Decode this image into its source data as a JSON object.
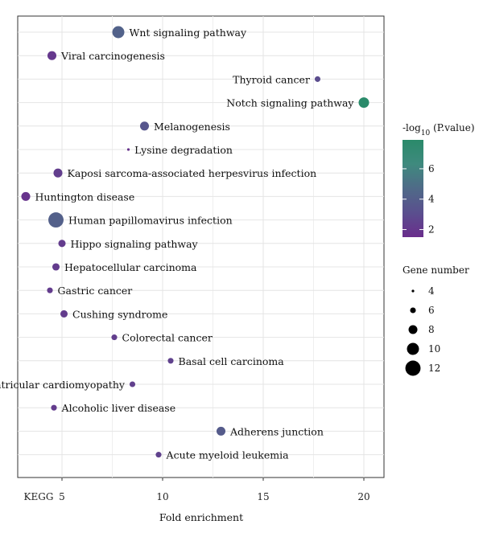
{
  "chart_data": {
    "type": "scatter",
    "xlabel": "Fold enrichment",
    "ylabel": "",
    "x_extra_label": "KEGG",
    "xlim": [
      2.8,
      21
    ],
    "xticks": [
      5,
      10,
      15,
      20
    ],
    "grid": true,
    "color_legend": {
      "title_prefix": "-log",
      "title_sub": "10",
      "title_suffix": " (P.value)",
      "range": [
        1.5,
        7.9
      ],
      "ticks": [
        2,
        4,
        6
      ],
      "gradient": [
        "#6a2d8c",
        "#5a4f8e",
        "#4f6a88",
        "#3f8a7e",
        "#2a8a6a"
      ]
    },
    "size_legend": {
      "title": "Gene number",
      "values": [
        4,
        6,
        8,
        10,
        12
      ]
    },
    "points": [
      {
        "term": "Wnt signaling pathway",
        "x": 7.8,
        "neglog10p": 4.2,
        "genes": 10
      },
      {
        "term": "Viral carcinogenesis",
        "x": 4.5,
        "neglog10p": 2.0,
        "genes": 8
      },
      {
        "term": "Thyroid cancer",
        "x": 17.7,
        "neglog10p": 3.0,
        "genes": 6
      },
      {
        "term": "Notch signaling pathway",
        "x": 20.0,
        "neglog10p": 7.9,
        "genes": 9
      },
      {
        "term": "Melanogenesis",
        "x": 9.1,
        "neglog10p": 3.5,
        "genes": 8
      },
      {
        "term": "Lysine degradation",
        "x": 8.3,
        "neglog10p": 1.8,
        "genes": 4
      },
      {
        "term": "Kaposi sarcoma-associated herpesvirus infection",
        "x": 4.8,
        "neglog10p": 2.3,
        "genes": 8
      },
      {
        "term": "Huntington disease",
        "x": 3.2,
        "neglog10p": 1.8,
        "genes": 8
      },
      {
        "term": "Human papillomavirus infection",
        "x": 4.7,
        "neglog10p": 4.1,
        "genes": 12
      },
      {
        "term": "Hippo signaling pathway",
        "x": 5.0,
        "neglog10p": 2.2,
        "genes": 7
      },
      {
        "term": "Hepatocellular carcinoma",
        "x": 4.7,
        "neglog10p": 2.2,
        "genes": 7
      },
      {
        "term": "Gastric cancer",
        "x": 4.4,
        "neglog10p": 2.2,
        "genes": 6
      },
      {
        "term": "Cushing syndrome",
        "x": 5.1,
        "neglog10p": 2.2,
        "genes": 7
      },
      {
        "term": "Colorectal cancer",
        "x": 7.6,
        "neglog10p": 2.3,
        "genes": 6
      },
      {
        "term": "Basal cell carcinoma",
        "x": 10.4,
        "neglog10p": 2.5,
        "genes": 6
      },
      {
        "term": "Arrhythmogenic right ventricular cardiomyopathy",
        "x": 8.5,
        "neglog10p": 2.4,
        "genes": 6
      },
      {
        "term": "Alcoholic liver disease",
        "x": 4.6,
        "neglog10p": 2.2,
        "genes": 6
      },
      {
        "term": "Adherens junction",
        "x": 12.9,
        "neglog10p": 3.8,
        "genes": 8
      },
      {
        "term": "Acute myeloid leukemia",
        "x": 9.8,
        "neglog10p": 2.5,
        "genes": 6
      }
    ]
  }
}
